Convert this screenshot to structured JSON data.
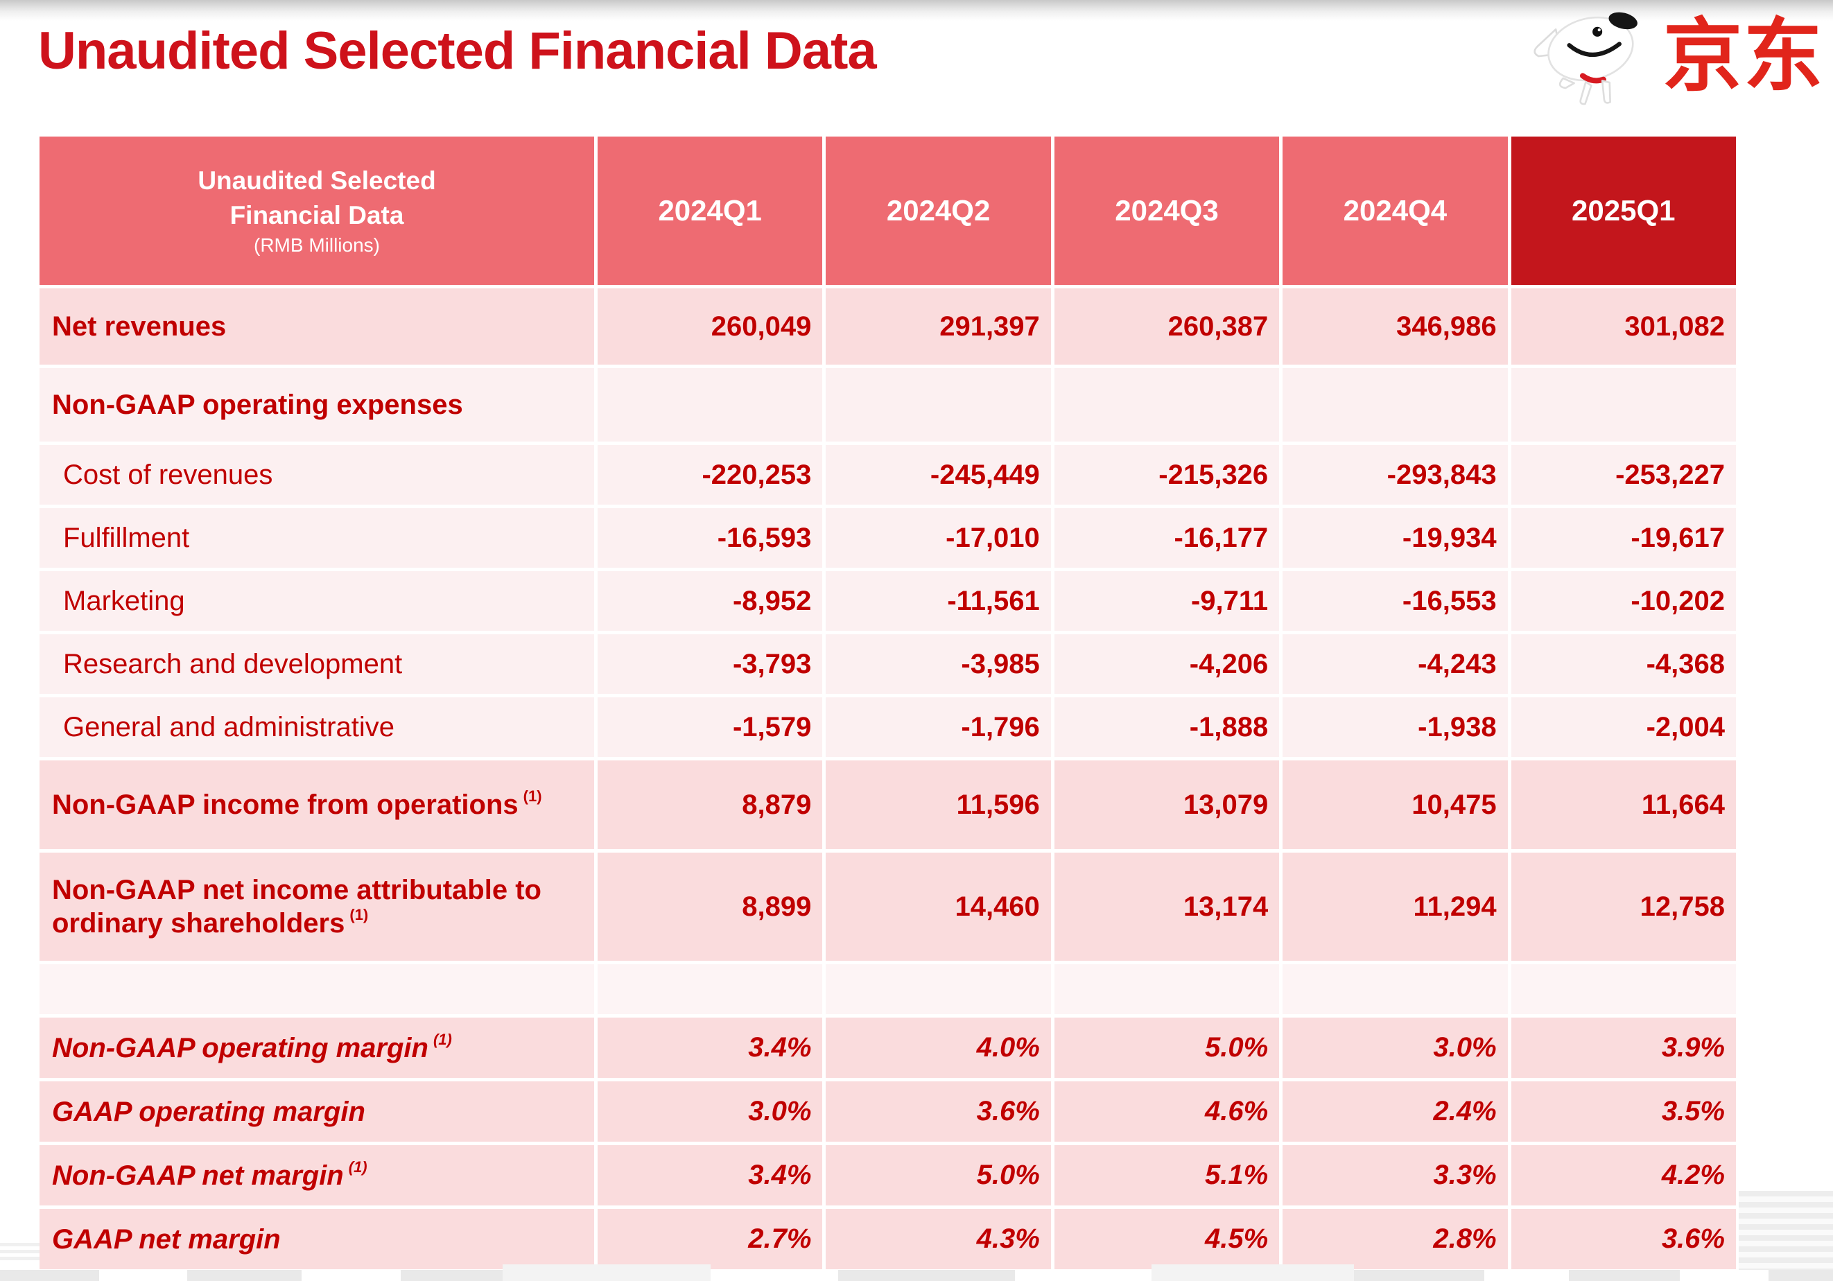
{
  "page": {
    "title": "Unaudited Selected Financial Data"
  },
  "logo": {
    "brand_text": "京东",
    "mascot": "jd-joy-dog-mascot"
  },
  "colors": {
    "title_red": "#CE121B",
    "brand_red": "#E1251B",
    "header_bg": "#EE6B72",
    "header_highlight_bg": "#C3161C",
    "row_pink": "#FADCDD",
    "row_light": "#FCF0F1",
    "row_spacer": "#FDF4F5",
    "text_red": "#C00000"
  },
  "table": {
    "header": {
      "label_line1": "Unaudited Selected",
      "label_line2": "Financial Data",
      "label_subtitle": "(RMB Millions)",
      "columns": [
        "2024Q1",
        "2024Q2",
        "2024Q3",
        "2024Q4",
        "2025Q1"
      ],
      "highlighted_column": "2025Q1"
    },
    "rows": [
      {
        "label": "Net revenues",
        "sup": "",
        "style": "bold",
        "bg": "pink",
        "kind": "netrev",
        "values": [
          "260,049",
          "291,397",
          "260,387",
          "346,986",
          "301,082"
        ]
      },
      {
        "label": "Non-GAAP operating expenses",
        "sup": "",
        "style": "bold",
        "bg": "light",
        "kind": "section",
        "values": [
          "",
          "",
          "",
          "",
          ""
        ]
      },
      {
        "label": "Cost of revenues",
        "sup": "",
        "style": "indent",
        "bg": "light",
        "kind": "item",
        "values": [
          "-220,253",
          "-245,449",
          "-215,326",
          "-293,843",
          "-253,227"
        ]
      },
      {
        "label": "Fulfillment",
        "sup": "",
        "style": "indent",
        "bg": "light",
        "kind": "item",
        "values": [
          "-16,593",
          "-17,010",
          "-16,177",
          "-19,934",
          "-19,617"
        ]
      },
      {
        "label": "Marketing",
        "sup": "",
        "style": "indent",
        "bg": "light",
        "kind": "item",
        "values": [
          "-8,952",
          "-11,561",
          "-9,711",
          "-16,553",
          "-10,202"
        ]
      },
      {
        "label": "Research and development",
        "sup": "",
        "style": "indent",
        "bg": "light",
        "kind": "item",
        "values": [
          "-3,793",
          "-3,985",
          "-4,206",
          "-4,243",
          "-4,368"
        ]
      },
      {
        "label": "General and administrative",
        "sup": "",
        "style": "indent",
        "bg": "light",
        "kind": "item",
        "values": [
          "-1,579",
          "-1,796",
          "-1,888",
          "-1,938",
          "-2,004"
        ]
      },
      {
        "label": "Non-GAAP income from operations",
        "sup": "(1)",
        "style": "bold",
        "bg": "pink",
        "kind": "income1",
        "values": [
          "8,879",
          "11,596",
          "13,079",
          "10,475",
          "11,664"
        ]
      },
      {
        "label": "Non-GAAP net income attributable to ordinary shareholders",
        "sup": "(1)",
        "style": "bold",
        "bg": "pink",
        "kind": "income2",
        "values": [
          "8,899",
          "14,460",
          "13,174",
          "11,294",
          "12,758"
        ]
      },
      {
        "label": "",
        "sup": "",
        "style": "spacer",
        "bg": "spacer",
        "kind": "spacer",
        "values": [
          "",
          "",
          "",
          "",
          ""
        ]
      },
      {
        "label": "Non-GAAP operating margin",
        "sup": "(1)",
        "style": "bold-italic",
        "bg": "pink",
        "kind": "margin",
        "values": [
          "3.4%",
          "4.0%",
          "5.0%",
          "3.0%",
          "3.9%"
        ]
      },
      {
        "label": "GAAP operating margin",
        "sup": "",
        "style": "bold-italic",
        "bg": "pink",
        "kind": "margin",
        "values": [
          "3.0%",
          "3.6%",
          "4.6%",
          "2.4%",
          "3.5%"
        ]
      },
      {
        "label": "Non-GAAP net margin",
        "sup": "(1)",
        "style": "bold-italic",
        "bg": "pink",
        "kind": "margin",
        "values": [
          "3.4%",
          "5.0%",
          "5.1%",
          "3.3%",
          "4.2%"
        ]
      },
      {
        "label": "GAAP net margin",
        "sup": "",
        "style": "bold-italic",
        "bg": "pink",
        "kind": "margin",
        "values": [
          "2.7%",
          "4.3%",
          "4.5%",
          "2.8%",
          "3.6%"
        ]
      }
    ]
  }
}
